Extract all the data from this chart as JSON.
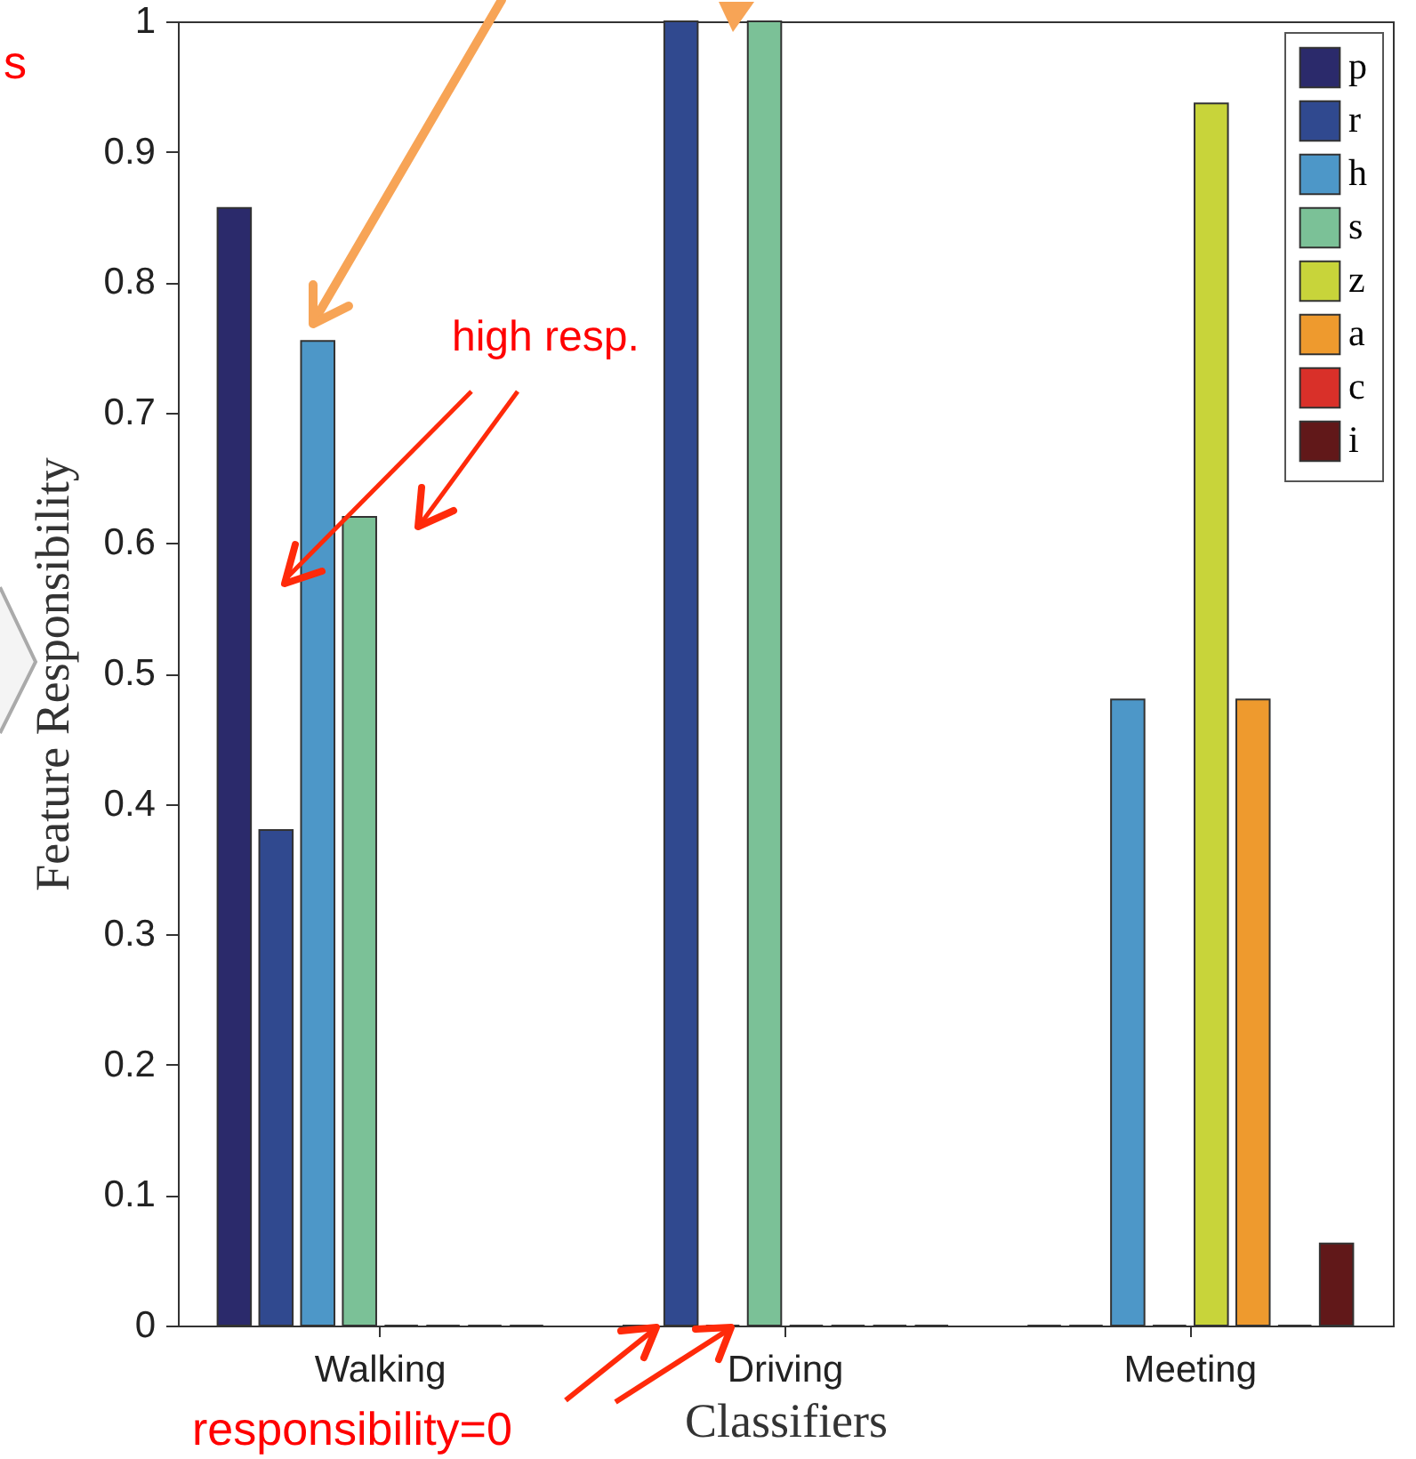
{
  "chart_data": {
    "type": "bar",
    "xlabel": "Classifiers",
    "ylabel": "Feature Responsibility",
    "categories": [
      "Walking",
      "Driving",
      "Meeting"
    ],
    "series": [
      {
        "name": "p",
        "color": "#2b2a6b",
        "values": [
          0.857,
          0,
          0
        ]
      },
      {
        "name": "r",
        "color": "#30498f",
        "values": [
          0.38,
          1,
          0
        ]
      },
      {
        "name": "h",
        "color": "#4d97c8",
        "values": [
          0.755,
          0,
          0.48
        ]
      },
      {
        "name": "s",
        "color": "#7bc197",
        "values": [
          0.62,
          1,
          0
        ]
      },
      {
        "name": "z",
        "color": "#c8d43a",
        "values": [
          0,
          0,
          0.937
        ]
      },
      {
        "name": "a",
        "color": "#ee9a2e",
        "values": [
          0,
          0,
          0.48
        ]
      },
      {
        "name": "c",
        "color": "#d93029",
        "values": [
          0,
          0,
          0
        ]
      },
      {
        "name": "i",
        "color": "#611819",
        "values": [
          0,
          0,
          0.063
        ]
      }
    ],
    "ylim": [
      0,
      1
    ],
    "yticks": [
      0,
      0.1,
      0.2,
      0.3,
      0.4,
      0.5,
      0.6,
      0.7,
      0.8,
      0.9,
      1
    ],
    "legend": "top right",
    "annotations": [
      "high resp.",
      "responsibility=0",
      "s"
    ]
  }
}
